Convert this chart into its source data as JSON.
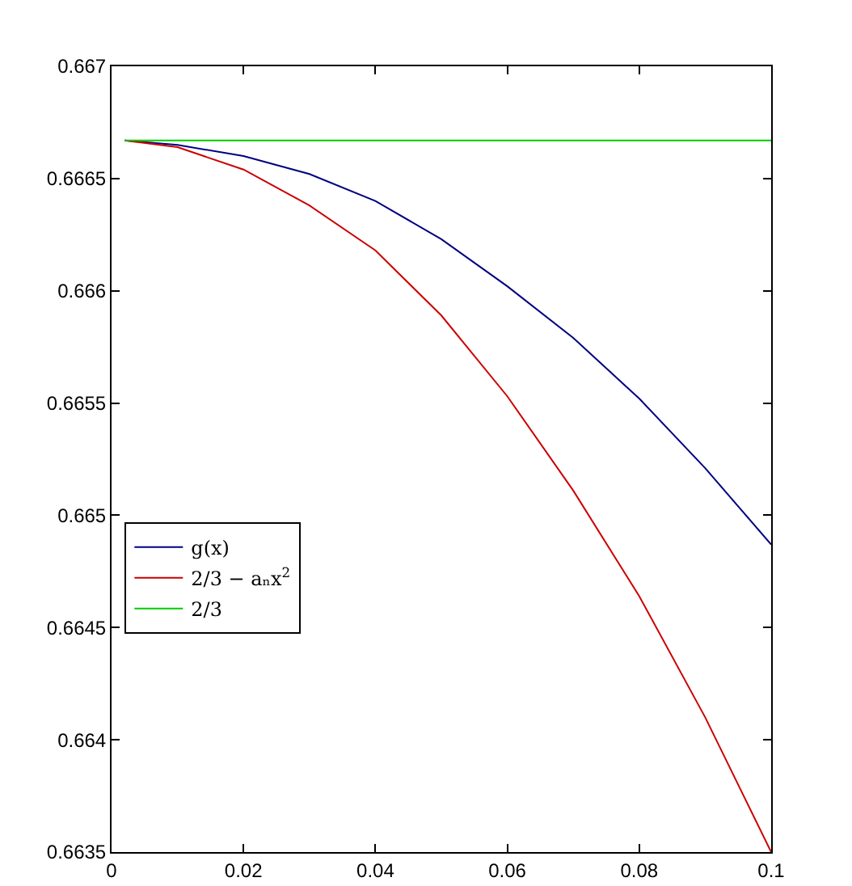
{
  "chart_data": {
    "type": "line",
    "x": [
      0.002,
      0.01,
      0.02,
      0.03,
      0.04,
      0.05,
      0.06,
      0.07,
      0.08,
      0.09,
      0.1
    ],
    "series": [
      {
        "name": "g(x)",
        "color": "#000080",
        "values": [
          0.66667,
          0.66665,
          0.6666,
          0.66652,
          0.6664,
          0.66623,
          0.66602,
          0.66579,
          0.66552,
          0.66521,
          0.66487
        ]
      },
      {
        "name": "2/3 − aₙx$^{2}$",
        "color": "#cc0000",
        "values": [
          0.66667,
          0.66664,
          0.66654,
          0.66638,
          0.66618,
          0.66589,
          0.66553,
          0.66511,
          0.66464,
          0.6641,
          0.6635
        ]
      },
      {
        "name": "2/3",
        "color": "#00cc00",
        "values": [
          0.66667,
          0.66667,
          0.66667,
          0.66667,
          0.66667,
          0.66667,
          0.66667,
          0.66667,
          0.66667,
          0.66667,
          0.66667
        ]
      }
    ],
    "xlim": [
      0,
      0.1
    ],
    "xticks": [
      0,
      0.02,
      0.04,
      0.06,
      0.08,
      0.1
    ],
    "ylim": [
      0.6635,
      0.667
    ],
    "yticks": [
      0.6635,
      0.664,
      0.6645,
      0.665,
      0.6655,
      0.666,
      0.6665,
      0.667
    ],
    "grid": false,
    "legend": "left",
    "line_style": "solid",
    "marker": "none"
  }
}
